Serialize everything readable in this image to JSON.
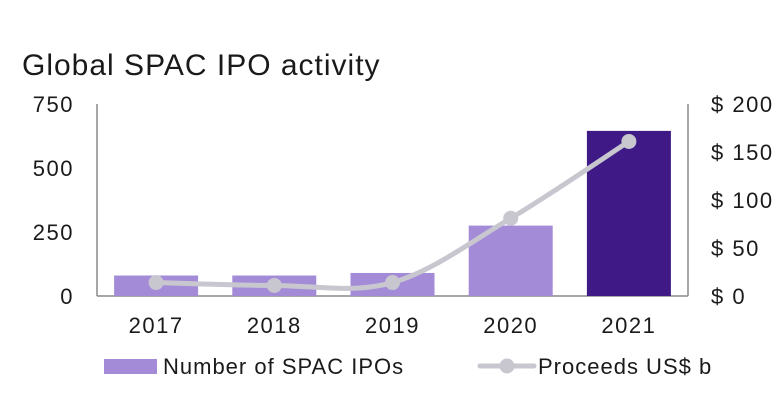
{
  "chart_data": {
    "type": "bar",
    "title": "Global SPAC IPO activity",
    "categories": [
      "2017",
      "2018",
      "2019",
      "2020",
      "2021"
    ],
    "series": [
      {
        "name": "Number of SPAC IPOs",
        "kind": "bar",
        "axis": "left",
        "values": [
          80,
          80,
          90,
          275,
          645
        ],
        "colors": [
          "#a38bd8",
          "#a38bd8",
          "#a38bd8",
          "#a38bd8",
          "#3f1a87"
        ]
      },
      {
        "name": "Proceeds US$ b",
        "kind": "line",
        "axis": "right",
        "values": [
          14,
          11,
          14,
          81,
          161
        ],
        "color": "#c8c6cf"
      }
    ],
    "left_axis": {
      "ylim": [
        0,
        750
      ],
      "ticks": [
        0,
        250,
        500,
        750
      ],
      "tick_labels": [
        "0",
        "250",
        "500",
        "750"
      ]
    },
    "right_axis": {
      "ylim": [
        0,
        200
      ],
      "ticks": [
        0,
        50,
        100,
        150,
        200
      ],
      "tick_labels": [
        "$ 0",
        "$ 50",
        "$ 100",
        "$ 150",
        "$ 200"
      ]
    },
    "xlabel": "",
    "ylabel": "",
    "grid": false,
    "legend_position": "bottom"
  }
}
